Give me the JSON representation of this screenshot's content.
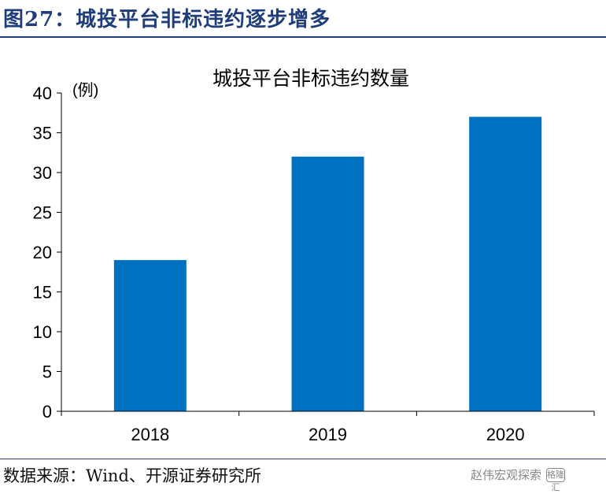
{
  "figure": {
    "title": "图27：城投平台非标违约逐步增多",
    "source": "数据来源：Wind、开源证券研究所",
    "watermark": "赵伟宏观探索",
    "watermark_badge": "格隆汇"
  },
  "chart_data": {
    "type": "bar",
    "title": "城投平台非标违约数量",
    "unit": "(例)",
    "categories": [
      "2018",
      "2019",
      "2020"
    ],
    "values": [
      19,
      32,
      37
    ],
    "ylim": [
      0,
      40
    ],
    "yticks": [
      0,
      5,
      10,
      15,
      20,
      25,
      30,
      35,
      40
    ],
    "grid": false,
    "bar_color": "#0070c0"
  }
}
